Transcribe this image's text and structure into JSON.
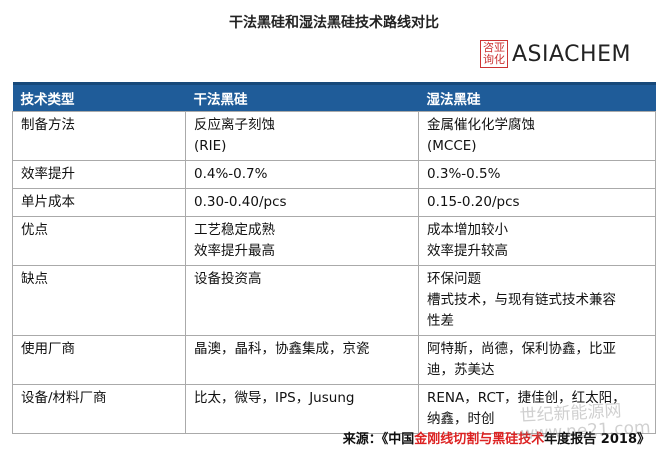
{
  "title": "干法黑硅和湿法黑硅技术路线对比",
  "logo": {
    "lines": [
      "咨亚",
      "询化"
    ],
    "name": "ASIACHEM"
  },
  "table": {
    "header": [
      "技术类型",
      "干法黑硅",
      "湿法黑硅"
    ],
    "rows": [
      [
        [
          "制备方法"
        ],
        [
          "反应离子刻蚀",
          "(RIE)"
        ],
        [
          "金属催化化学腐蚀",
          "(MCCE)"
        ]
      ],
      [
        [
          "效率提升"
        ],
        [
          "0.4%-0.7%"
        ],
        [
          "0.3%-0.5%"
        ]
      ],
      [
        [
          "单片成本"
        ],
        [
          "0.30-0.40/pcs"
        ],
        [
          "0.15-0.20/pcs"
        ]
      ],
      [
        [
          "优点"
        ],
        [
          "工艺稳定成熟",
          "效率提升最高"
        ],
        [
          "成本增加较小",
          "效率提升较高"
        ]
      ],
      [
        [
          "缺点"
        ],
        [
          "设备投资高"
        ],
        [
          "环保问题",
          "槽式技术，与现有链式技术兼容",
          "性差"
        ]
      ],
      [
        [
          "使用厂商"
        ],
        [
          "晶澳，晶科，协鑫集成，京瓷"
        ],
        [
          "阿特斯，尚德，保利协鑫，比亚",
          "迪，苏美达"
        ]
      ],
      [
        [
          "设备/材料厂商"
        ],
        [
          "比太，微导，IPS，Jusung"
        ],
        [
          "RENA，RCT，捷佳创，红太阳，",
          "纳鑫，时创"
        ]
      ]
    ]
  },
  "source": [
    "来源：《中国",
    "金刚线切割与黑硅技术",
    "年度报告 2018》"
  ],
  "watermark": [
    "世纪新能源网",
    "www.ne21.com"
  ]
}
